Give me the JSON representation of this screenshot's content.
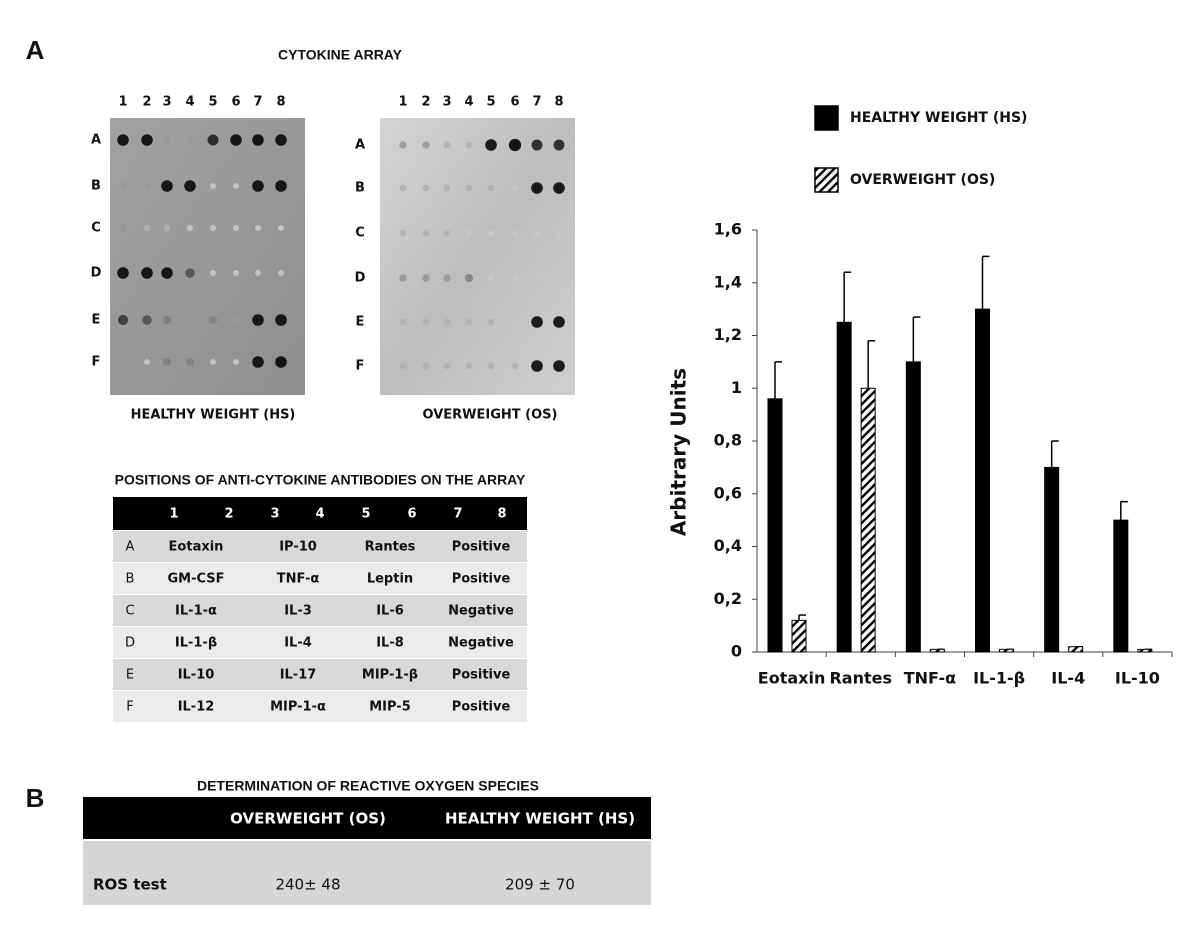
{
  "panel_labels": {
    "a": "A",
    "b": "B"
  },
  "array": {
    "title": "CYTOKINE ARRAY",
    "columns": [
      "1",
      "2",
      "3",
      "4",
      "5",
      "6",
      "7",
      "8"
    ],
    "rows": [
      "A",
      "B",
      "C",
      "D",
      "E",
      "F"
    ],
    "panels": [
      {
        "label": "HEALTHY WEIGHT (HS)"
      },
      {
        "label": "OVERWEIGHT (OS)"
      }
    ]
  },
  "positions_table": {
    "title": "POSITIONS OF ANTI-CYTOKINE ANTIBODIES ON THE ARRAY",
    "header": [
      "1",
      "2",
      "3",
      "4",
      "5",
      "6",
      "7",
      "8"
    ],
    "rows": [
      [
        "A",
        "Eotaxin",
        "IP-10",
        "Rantes",
        "Positive"
      ],
      [
        "B",
        "GM-CSF",
        "TNF-α",
        "Leptin",
        "Positive"
      ],
      [
        "C",
        "IL-1-α",
        "IL-3",
        "IL-6",
        "Negative"
      ],
      [
        "D",
        "IL-1-β",
        "IL-4",
        "IL-8",
        "Negative"
      ],
      [
        "E",
        "IL-10",
        "IL-17",
        "MIP-1-β",
        "Positive"
      ],
      [
        "F",
        "IL-12",
        "MIP-1-α",
        "MIP-5",
        "Positive"
      ]
    ]
  },
  "ros_table": {
    "title": "DETERMINATION OF REACTIVE OXYGEN SPECIES",
    "header": [
      "OVERWEIGHT (OS)",
      "HEALTHY WEIGHT (HS)"
    ],
    "rows": [
      [
        "ROS test",
        "240± 48",
        "209 ± 70"
      ]
    ]
  },
  "chart_data": {
    "type": "bar",
    "y_label": "Arbitrary Units",
    "categories": [
      "Eotaxin",
      "Rantes",
      "TNF-α",
      "IL-1-β",
      "IL-4",
      "IL-10"
    ],
    "series": [
      {
        "name": "HEALTHY WEIGHT (HS)",
        "color": "#000000",
        "hatch": false,
        "values": [
          0.96,
          1.25,
          1.1,
          1.3,
          0.7,
          0.5
        ],
        "errors": [
          0.14,
          0.19,
          0.17,
          0.2,
          0.1,
          0.07
        ]
      },
      {
        "name": "OVERWEIGHT (OS)",
        "color": "#000000",
        "hatch": true,
        "values": [
          0.12,
          1.0,
          0.01,
          0.01,
          0.02,
          0.01
        ],
        "errors": [
          0.02,
          0.18,
          0,
          0,
          0,
          0
        ]
      }
    ],
    "ylim": [
      0,
      1.6
    ],
    "yticks": [
      0,
      {
        "value": 0.2,
        "label": "0,2"
      },
      {
        "value": 0.4,
        "label": "0,4"
      },
      {
        "value": 0.6,
        "label": "0,6"
      },
      {
        "value": 0.8,
        "label": "0,8"
      },
      1,
      {
        "value": 1.2,
        "label": "1,2"
      },
      {
        "value": 1.4,
        "label": "1,4"
      },
      {
        "value": 1.6,
        "label": "1,6"
      }
    ],
    "grid": false,
    "legend": "top"
  }
}
